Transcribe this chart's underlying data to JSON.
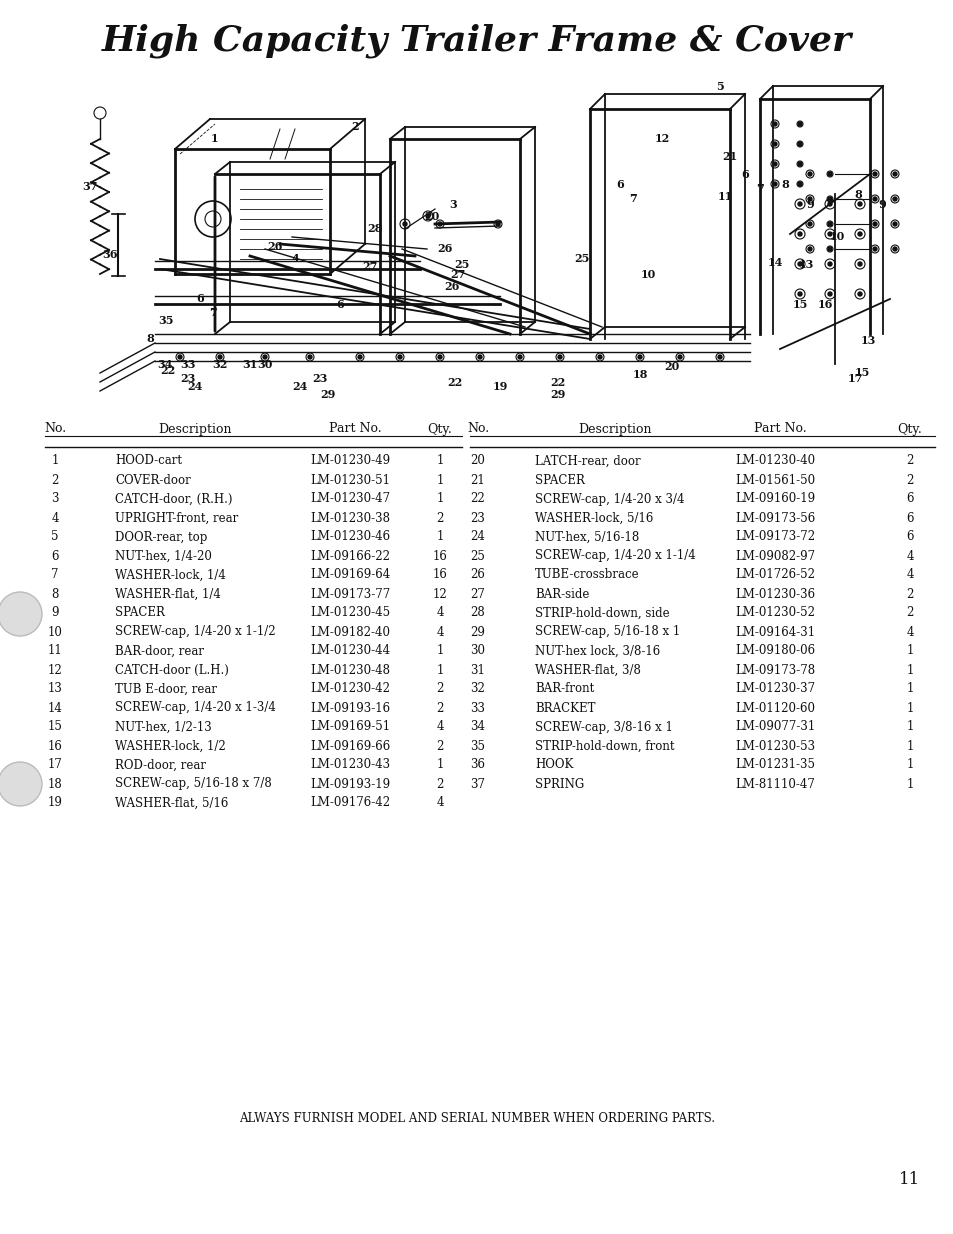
{
  "title": "High Capacity Trailer Frame & Cover",
  "page_number": "11",
  "footer_text": "ALWAYS FURNISH MODEL AND SERIAL NUMBER WHEN ORDERING PARTS.",
  "table_header": [
    "No.",
    "Description",
    "Part No.",
    "Qty.",
    "No.",
    "Description",
    "Part No.",
    "Qty."
  ],
  "parts_left": [
    [
      "1",
      "HOOD-cart",
      "LM-01230-49",
      "1"
    ],
    [
      "2",
      "COVER-door",
      "LM-01230-51",
      "1"
    ],
    [
      "3",
      "CATCH-door, (R.H.)",
      "LM-01230-47",
      "1"
    ],
    [
      "4",
      "UPRIGHT-front, rear",
      "LM-01230-38",
      "2"
    ],
    [
      "5",
      "DOOR-rear, top",
      "LM-01230-46",
      "1"
    ],
    [
      "6",
      "NUT-hex, 1/4-20",
      "LM-09166-22",
      "16"
    ],
    [
      "7",
      "WASHER-lock, 1/4",
      "LM-09169-64",
      "16"
    ],
    [
      "8",
      "WASHER-flat, 1/4",
      "LM-09173-77",
      "12"
    ],
    [
      "9",
      "SPACER",
      "LM-01230-45",
      "4"
    ],
    [
      "10",
      "SCREW-cap, 1/4-20 x 1-1/2",
      "LM-09182-40",
      "4"
    ],
    [
      "11",
      "BAR-door, rear",
      "LM-01230-44",
      "1"
    ],
    [
      "12",
      "CATCH-door (L.H.)",
      "LM-01230-48",
      "1"
    ],
    [
      "13",
      "TUB E-door, rear",
      "LM-01230-42",
      "2"
    ],
    [
      "14",
      "SCREW-cap, 1/4-20 x 1-3/4",
      "LM-09193-16",
      "2"
    ],
    [
      "15",
      "NUT-hex, 1/2-13",
      "LM-09169-51",
      "4"
    ],
    [
      "16",
      "WASHER-lock, 1/2",
      "LM-09169-66",
      "2"
    ],
    [
      "17",
      "ROD-door, rear",
      "LM-01230-43",
      "1"
    ],
    [
      "18",
      "SCREW-cap, 5/16-18 x 7/8",
      "LM-09193-19",
      "2"
    ],
    [
      "19",
      "WASHER-flat, 5/16",
      "LM-09176-42",
      "4"
    ]
  ],
  "parts_right": [
    [
      "20",
      "LATCH-rear, door",
      "LM-01230-40",
      "2"
    ],
    [
      "21",
      "SPACER",
      "LM-01561-50",
      "2"
    ],
    [
      "22",
      "SCREW-cap, 1/4-20 x 3/4",
      "LM-09160-19",
      "6"
    ],
    [
      "23",
      "WASHER-lock, 5/16",
      "LM-09173-56",
      "6"
    ],
    [
      "24",
      "NUT-hex, 5/16-18",
      "LM-09173-72",
      "6"
    ],
    [
      "25",
      "SCREW-cap, 1/4-20 x 1-1/4",
      "LM-09082-97",
      "4"
    ],
    [
      "26",
      "TUBE-crossbrace",
      "LM-01726-52",
      "4"
    ],
    [
      "27",
      "BAR-side",
      "LM-01230-36",
      "2"
    ],
    [
      "28",
      "STRIP-hold-down, side",
      "LM-01230-52",
      "2"
    ],
    [
      "29",
      "SCREW-cap, 5/16-18 x 1",
      "LM-09164-31",
      "4"
    ],
    [
      "30",
      "NUT-hex lock, 3/8-16",
      "LM-09180-06",
      "1"
    ],
    [
      "31",
      "WASHER-flat, 3/8",
      "LM-09173-78",
      "1"
    ],
    [
      "32",
      "BAR-front",
      "LM-01230-37",
      "1"
    ],
    [
      "33",
      "BRACKET",
      "LM-01120-60",
      "1"
    ],
    [
      "34",
      "SCREW-cap, 3/8-16 x 1",
      "LM-09077-31",
      "1"
    ],
    [
      "35",
      "STRIP-hold-down, front",
      "LM-01230-53",
      "1"
    ],
    [
      "36",
      "HOOK",
      "LM-01231-35",
      "1"
    ],
    [
      "37",
      "SPRING",
      "LM-81110-47",
      "1"
    ]
  ]
}
